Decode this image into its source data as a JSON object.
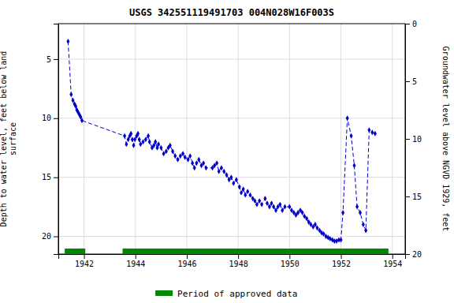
{
  "chart_data": {
    "type": "line",
    "title": "USGS 342551119491703 004N028W16F003S",
    "y_label": "Depth to water level, feet below land\nsurface",
    "y2_label": "Groundwater level above NGVD 1929, feet",
    "xlim": [
      1941.0,
      1954.5
    ],
    "xticks": [
      1942,
      1944,
      1946,
      1948,
      1950,
      1952,
      1954
    ],
    "ylim": [
      21.5,
      2.0
    ],
    "yticks": [
      5,
      10,
      15,
      20
    ],
    "y2lim": [
      20,
      0
    ],
    "y2ticks": [
      0,
      5,
      10,
      15,
      20
    ],
    "grid": true,
    "legend": "bottom",
    "x": [
      1941.38,
      1941.5,
      1941.57,
      1941.63,
      1941.68,
      1941.72,
      1941.77,
      1941.82,
      1941.87,
      1941.92,
      1943.58,
      1943.65,
      1943.72,
      1943.78,
      1943.83,
      1943.88,
      1943.93,
      1943.98,
      1944.05,
      1944.1,
      1944.15,
      1944.2,
      1944.3,
      1944.4,
      1944.5,
      1944.55,
      1944.65,
      1944.72,
      1944.78,
      1944.85,
      1944.9,
      1945.0,
      1945.1,
      1945.2,
      1945.28,
      1945.35,
      1945.45,
      1945.55,
      1945.65,
      1945.75,
      1945.85,
      1945.93,
      1946.05,
      1946.13,
      1946.22,
      1946.3,
      1946.38,
      1946.47,
      1946.57,
      1946.65,
      1946.75,
      1947.0,
      1947.08,
      1947.17,
      1947.25,
      1947.35,
      1947.45,
      1947.55,
      1947.65,
      1947.73,
      1947.82,
      1947.93,
      1948.05,
      1948.12,
      1948.2,
      1948.28,
      1948.37,
      1948.47,
      1948.57,
      1948.65,
      1948.73,
      1948.83,
      1948.92,
      1949.05,
      1949.13,
      1949.22,
      1949.3,
      1949.38,
      1949.47,
      1949.55,
      1949.63,
      1949.72,
      1949.82,
      1950.0,
      1950.08,
      1950.17,
      1950.25,
      1950.33,
      1950.42,
      1950.5,
      1950.58,
      1950.67,
      1950.75,
      1950.83,
      1950.92,
      1951.0,
      1951.08,
      1951.17,
      1951.25,
      1951.33,
      1951.42,
      1951.5,
      1951.58,
      1951.67,
      1951.75,
      1951.83,
      1951.92,
      1952.0,
      1952.08,
      1952.25,
      1952.4,
      1952.52,
      1952.63,
      1952.75,
      1952.87,
      1952.97,
      1953.1,
      1953.22,
      1953.33
    ],
    "series": [
      {
        "type": "line",
        "color": "#0000cc",
        "marker": "diamond",
        "line_style": "dashed",
        "values": [
          3.5,
          8.0,
          8.5,
          8.8,
          9.0,
          9.3,
          9.5,
          9.7,
          9.9,
          10.2,
          11.5,
          12.2,
          11.8,
          11.5,
          11.3,
          11.8,
          12.3,
          11.8,
          11.5,
          11.3,
          11.8,
          12.2,
          12.0,
          11.8,
          11.5,
          12.0,
          12.5,
          12.3,
          12.0,
          12.5,
          12.2,
          12.5,
          13.0,
          12.8,
          12.5,
          12.3,
          12.8,
          13.2,
          13.5,
          13.2,
          13.0,
          13.3,
          13.5,
          13.2,
          13.8,
          14.2,
          13.8,
          13.5,
          14.0,
          13.8,
          14.2,
          14.2,
          14.0,
          13.8,
          14.5,
          14.2,
          14.5,
          14.8,
          15.2,
          15.0,
          15.5,
          15.2,
          15.8,
          16.3,
          16.0,
          16.5,
          16.2,
          16.5,
          16.8,
          17.0,
          17.3,
          17.0,
          17.3,
          16.8,
          17.2,
          17.5,
          17.2,
          17.5,
          17.8,
          17.5,
          17.3,
          17.8,
          17.5,
          17.5,
          17.8,
          18.0,
          18.2,
          18.0,
          17.8,
          18.0,
          18.3,
          18.5,
          18.8,
          19.0,
          19.2,
          19.0,
          19.3,
          19.5,
          19.7,
          19.8,
          20.0,
          20.1,
          20.2,
          20.3,
          20.4,
          20.4,
          20.3,
          20.3,
          18.0,
          10.0,
          11.5,
          14.0,
          17.5,
          18.0,
          19.0,
          19.5,
          11.0,
          11.2,
          11.3
        ]
      },
      {
        "type": "range",
        "name": "Period of approved data",
        "color": "#008800",
        "ranges": [
          [
            1941.25,
            1942.05
          ],
          [
            1943.5,
            1953.85
          ]
        ]
      }
    ]
  }
}
